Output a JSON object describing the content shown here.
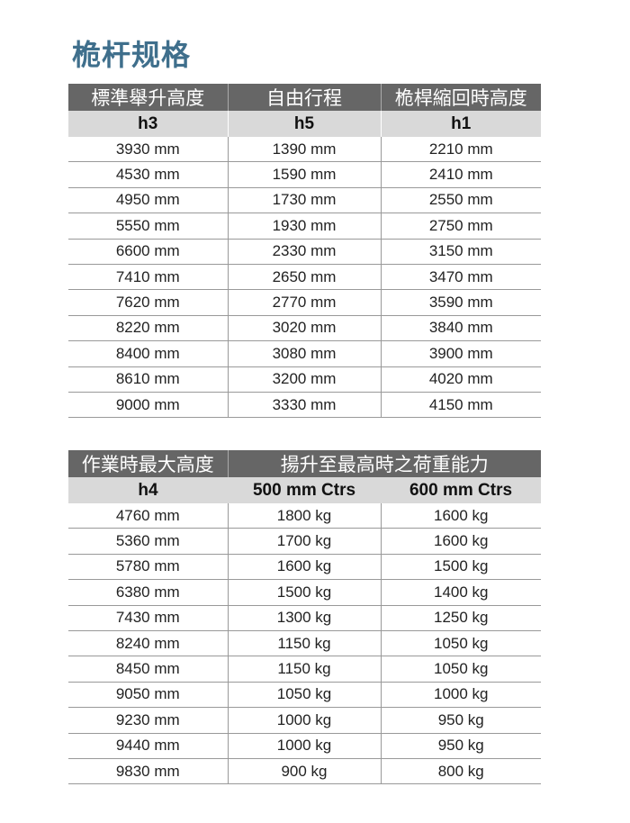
{
  "title": "桅杆规格",
  "table1": {
    "headers": [
      "標準舉升高度",
      "自由行程",
      "桅桿縮回時高度"
    ],
    "subheaders": [
      "h3",
      "h5",
      "h1"
    ],
    "rows": [
      [
        "3930 mm",
        "1390 mm",
        "2210 mm"
      ],
      [
        "4530 mm",
        "1590 mm",
        "2410 mm"
      ],
      [
        "4950 mm",
        "1730 mm",
        "2550 mm"
      ],
      [
        "5550 mm",
        "1930 mm",
        "2750 mm"
      ],
      [
        "6600 mm",
        "2330 mm",
        "3150 mm"
      ],
      [
        "7410 mm",
        "2650 mm",
        "3470 mm"
      ],
      [
        "7620 mm",
        "2770 mm",
        "3590 mm"
      ],
      [
        "8220 mm",
        "3020 mm",
        "3840 mm"
      ],
      [
        "8400 mm",
        "3080 mm",
        "3900 mm"
      ],
      [
        "8610 mm",
        "3200 mm",
        "4020 mm"
      ],
      [
        "9000 mm",
        "3330 mm",
        "4150 mm"
      ]
    ]
  },
  "table2": {
    "headers": [
      "作業時最大高度",
      "揚升至最高時之荷重能力"
    ],
    "subheaders": [
      "h4",
      "500 mm Ctrs",
      "600 mm Ctrs"
    ],
    "rows": [
      [
        "4760 mm",
        "1800 kg",
        "1600 kg"
      ],
      [
        "5360 mm",
        "1700 kg",
        "1600 kg"
      ],
      [
        "5780 mm",
        "1600 kg",
        "1500 kg"
      ],
      [
        "6380 mm",
        "1500 kg",
        "1400 kg"
      ],
      [
        "7430 mm",
        "1300 kg",
        "1250 kg"
      ],
      [
        "8240 mm",
        "1150 kg",
        "1050 kg"
      ],
      [
        "8450 mm",
        "1150 kg",
        "1050 kg"
      ],
      [
        "9050 mm",
        "1050 kg",
        "1000 kg"
      ],
      [
        "9230 mm",
        "1000 kg",
        "950 kg"
      ],
      [
        "9440 mm",
        "1000 kg",
        "950 kg"
      ],
      [
        "9830 mm",
        "900 kg",
        "800 kg"
      ]
    ]
  }
}
